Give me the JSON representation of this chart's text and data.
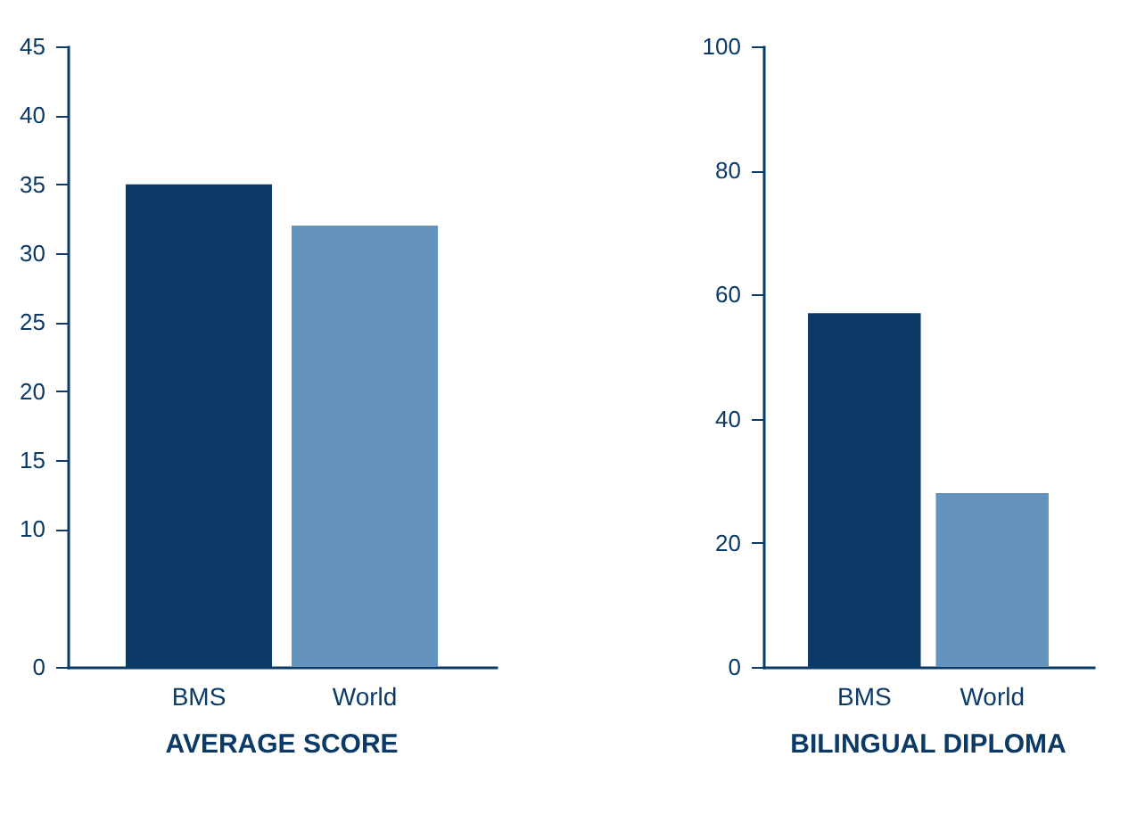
{
  "chart_data": [
    {
      "type": "bar",
      "title": "AVERAGE SCORE",
      "categories": [
        "BMS",
        "World"
      ],
      "values": [
        35,
        32
      ],
      "colors": [
        "#0b3a66",
        "#6494be"
      ],
      "ylim": [
        0,
        45
      ],
      "yticks": [
        0,
        10,
        15,
        20,
        25,
        30,
        35,
        40,
        45
      ],
      "grid": false,
      "legend": false
    },
    {
      "type": "bar",
      "title": "BILINGUAL DIPLOMA",
      "categories": [
        "BMS",
        "World"
      ],
      "values": [
        57,
        28
      ],
      "colors": [
        "#0b3a66",
        "#6494be"
      ],
      "ylim": [
        0,
        100
      ],
      "yticks": [
        0,
        20,
        40,
        60,
        80,
        100
      ],
      "grid": false,
      "legend": false
    }
  ]
}
